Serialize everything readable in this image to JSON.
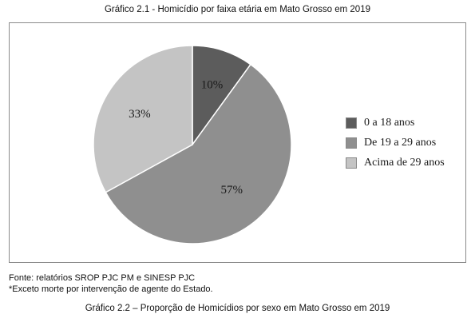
{
  "header": {
    "title": "Gráfico 2.1 - Homicídio por faixa etária em Mato Grosso em 2019"
  },
  "chart_data": {
    "type": "pie",
    "title": "Gráfico 2.1 - Homicídio por faixa etária em Mato Grosso em 2019",
    "categories": [
      "0 a 18 anos",
      "De 19 a 29 anos",
      "Acima de 29 anos"
    ],
    "values": [
      10,
      57,
      33
    ],
    "labels": [
      "10%",
      "57%",
      "33%"
    ],
    "colors": [
      "#5c5c5c",
      "#8f8f8f",
      "#c4c4c4"
    ],
    "legend_position": "right"
  },
  "footer": {
    "source": "Fonte: relatórios SROP PJC PM e SINESP PJC",
    "note": "*Exceto morte por intervenção de agente do Estado.",
    "next_title": "Gráfico 2.2 – Proporção de Homicídios por sexo em Mato Grosso em 2019"
  }
}
